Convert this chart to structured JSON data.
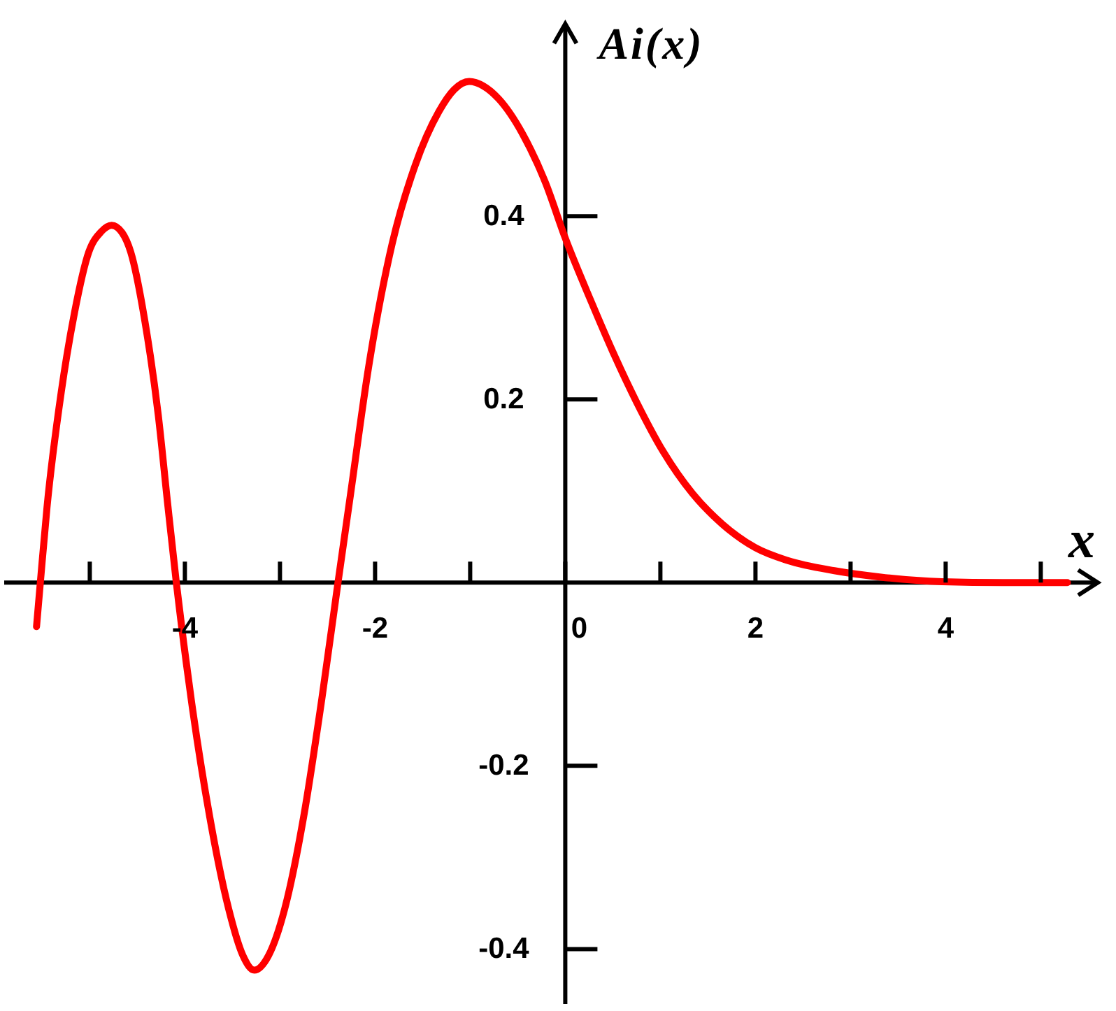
{
  "chart_data": {
    "type": "line",
    "xlabel": "x",
    "ylabel": "Ai(x)",
    "x": [
      -5.56,
      -5.52,
      -5.45,
      -5.3,
      -5.16,
      -5.01,
      -4.88,
      -4.77,
      -4.66,
      -4.57,
      -4.42,
      -4.28,
      -4.18,
      -4.09,
      -3.93,
      -3.74,
      -3.54,
      -3.39,
      -3.27,
      -3.12,
      -2.95,
      -2.75,
      -2.56,
      -2.39,
      -2.26,
      -2.07,
      -1.82,
      -1.58,
      -1.33,
      -1.17,
      -1.01,
      -0.86,
      -0.7,
      -0.45,
      -0.21,
      0,
      0.28,
      0.5,
      0.75,
      1.03,
      1.34,
      1.65,
      2,
      2.34,
      2.83,
      3.32,
      3.96,
      4.6,
      5.28
    ],
    "series": [
      {
        "color": "#ff0000",
        "values": [
          -0.048,
          0,
          0.082,
          0.208,
          0.295,
          0.361,
          0.383,
          0.39,
          0.382,
          0.361,
          0.285,
          0.183,
          0.085,
          0,
          -0.13,
          -0.255,
          -0.356,
          -0.407,
          -0.423,
          -0.407,
          -0.356,
          -0.255,
          -0.127,
          0,
          0.095,
          0.234,
          0.37,
          0.455,
          0.514,
          0.538,
          0.547,
          0.542,
          0.528,
          0.49,
          0.437,
          0.376,
          0.305,
          0.252,
          0.197,
          0.143,
          0.097,
          0.064,
          0.038,
          0.024,
          0.013,
          0.006,
          0.001,
          0,
          0
        ]
      }
    ],
    "xlim": [
      -5.9,
      5.6
    ],
    "ylim": [
      -0.46,
      0.61
    ],
    "xticks": [
      {
        "value": -5,
        "label": null
      },
      -4,
      {
        "value": -3,
        "label": null
      },
      -2,
      {
        "value": -1,
        "label": null
      },
      0,
      {
        "value": 1,
        "label": null
      },
      2,
      {
        "value": 3,
        "label": null
      },
      4,
      {
        "value": 5,
        "label": null
      }
    ],
    "yticks": [
      -0.4,
      -0.2,
      0.2,
      0.4
    ]
  }
}
